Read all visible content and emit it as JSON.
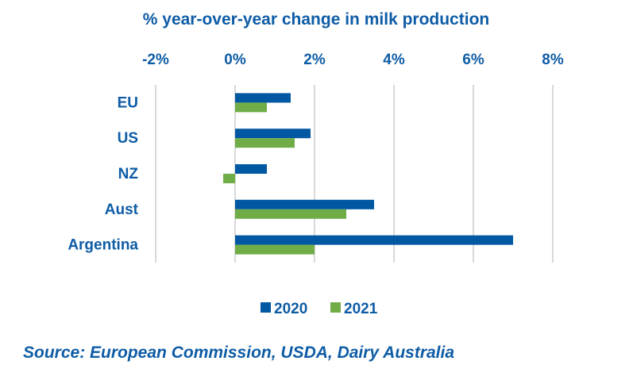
{
  "chart_data": {
    "type": "bar",
    "orientation": "horizontal",
    "title": "% year-over-year change in milk production",
    "xlabel": "",
    "ylabel": "",
    "xlim": [
      -2,
      8
    ],
    "x_ticks": [
      -2,
      0,
      2,
      4,
      6,
      8
    ],
    "x_tick_labels": [
      "-2%",
      "0%",
      "2%",
      "4%",
      "6%",
      "8%"
    ],
    "x_axis_position": "top",
    "grid": true,
    "categories": [
      "EU",
      "US",
      "NZ",
      "Aust",
      "Argentina"
    ],
    "series": [
      {
        "name": "2020",
        "color": "#0058A3",
        "values": [
          1.4,
          1.9,
          0.8,
          3.5,
          7.0
        ]
      },
      {
        "name": "2021",
        "color": "#70AD47",
        "values": [
          0.8,
          1.5,
          -0.3,
          2.8,
          2.0
        ]
      }
    ],
    "legend_position": "bottom",
    "source": "Source: European Commission, USDA, Dairy Australia"
  }
}
